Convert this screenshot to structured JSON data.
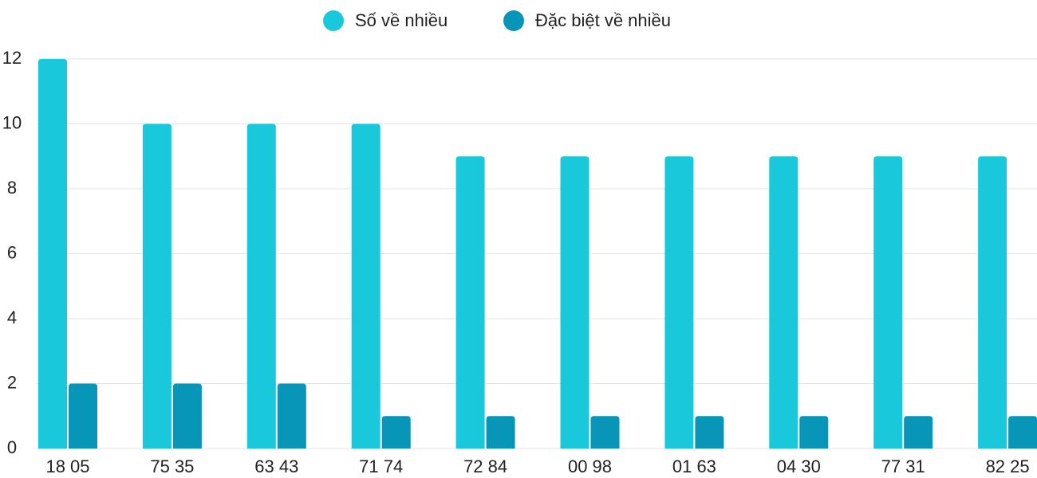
{
  "chart_data": {
    "type": "bar",
    "categories": [
      "18 05",
      "75 35",
      "63 43",
      "71 74",
      "72 84",
      "00 98",
      "01 63",
      "04 30",
      "77 31",
      "82 25"
    ],
    "series": [
      {
        "name": "Số về nhiều",
        "color": "#1ac8db",
        "values": [
          12,
          10,
          10,
          10,
          9,
          9,
          9,
          9,
          9,
          9
        ]
      },
      {
        "name": "Đặc biệt về nhiều",
        "color": "#0795b8",
        "values": [
          2,
          2,
          2,
          1,
          1,
          1,
          1,
          1,
          1,
          1
        ]
      }
    ],
    "ylim": [
      0,
      12
    ],
    "yticks": [
      0,
      2,
      4,
      6,
      8,
      10,
      12
    ],
    "grid": true,
    "legend": "top"
  }
}
